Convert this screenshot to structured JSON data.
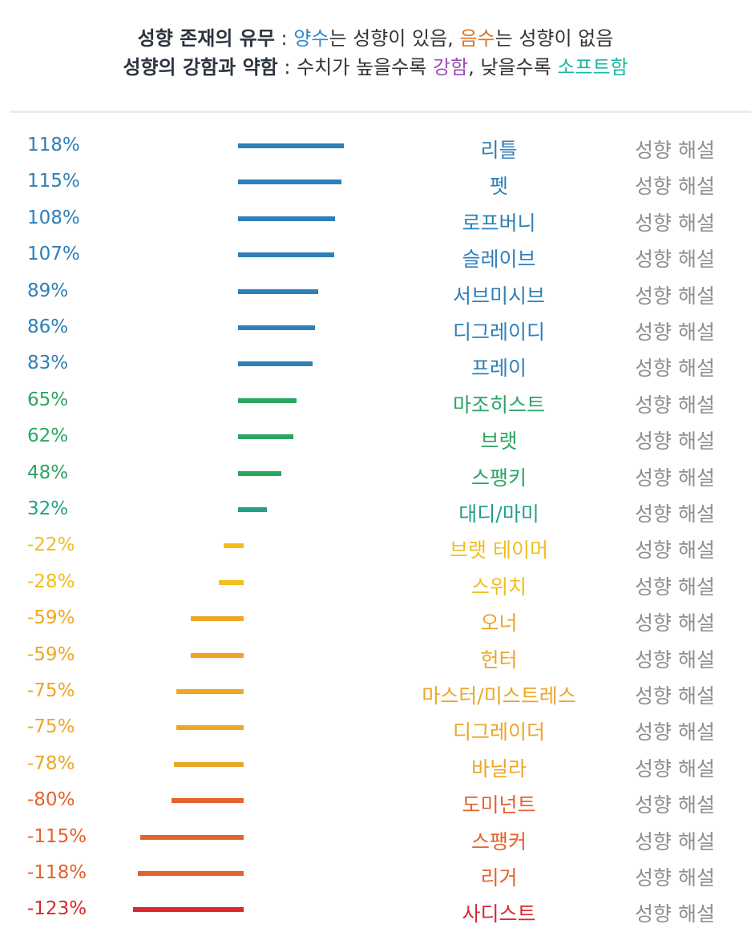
{
  "header": {
    "line1": {
      "bold": "성향 존재의 유무",
      "sep": " : ",
      "positive": "양수",
      "mid": "는 성향이 있음, ",
      "negative": "음수",
      "end": "는 성향이 없음",
      "positive_color": "#2a8bd0",
      "negative_color": "#e0721f"
    },
    "line2": {
      "bold": "성향의 강함과 약함",
      "sep": " : ",
      "text": "수치가 높을수록 ",
      "strong": "강함",
      "mid": ", 낮을수록 ",
      "soft": "소프트함",
      "strong_color": "#9b4bb4",
      "soft_color": "#1bb7a1"
    }
  },
  "rows": [
    {
      "pct_label": "118%",
      "value": 118,
      "name": "리틀",
      "desc": "성향 해설",
      "color": "#2f7fb8"
    },
    {
      "pct_label": "115%",
      "value": 115,
      "name": "펫",
      "desc": "성향 해설",
      "color": "#2f7fb8"
    },
    {
      "pct_label": "108%",
      "value": 108,
      "name": "로프버니",
      "desc": "성향 해설",
      "color": "#2f7fb8"
    },
    {
      "pct_label": "107%",
      "value": 107,
      "name": "슬레이브",
      "desc": "성향 해설",
      "color": "#2f7fb8"
    },
    {
      "pct_label": "89%",
      "value": 89,
      "name": "서브미시브",
      "desc": "성향 해설",
      "color": "#2f7fb8"
    },
    {
      "pct_label": "86%",
      "value": 86,
      "name": "디그레이디",
      "desc": "성향 해설",
      "color": "#2f7fb8"
    },
    {
      "pct_label": "83%",
      "value": 83,
      "name": "프레이",
      "desc": "성향 해설",
      "color": "#2f7fb8"
    },
    {
      "pct_label": "65%",
      "value": 65,
      "name": "마조히스트",
      "desc": "성향 해설",
      "color": "#2ba562"
    },
    {
      "pct_label": "62%",
      "value": 62,
      "name": "브랫",
      "desc": "성향 해설",
      "color": "#2ba562"
    },
    {
      "pct_label": "48%",
      "value": 48,
      "name": "스팽키",
      "desc": "성향 해설",
      "color": "#2ba562"
    },
    {
      "pct_label": "32%",
      "value": 32,
      "name": "대디/마미",
      "desc": "성향 해설",
      "color": "#24a08a"
    },
    {
      "pct_label": "-22%",
      "value": -22,
      "name": "브랫 테이머",
      "desc": "성향 해설",
      "color": "#f2bd1d"
    },
    {
      "pct_label": "-28%",
      "value": -28,
      "name": "스위치",
      "desc": "성향 해설",
      "color": "#f2bd1d"
    },
    {
      "pct_label": "-59%",
      "value": -59,
      "name": "오너",
      "desc": "성향 해설",
      "color": "#eda628"
    },
    {
      "pct_label": "-59%",
      "value": -59,
      "name": "헌터",
      "desc": "성향 해설",
      "color": "#eda628"
    },
    {
      "pct_label": "-75%",
      "value": -75,
      "name": "마스터/미스트레스",
      "desc": "성향 해설",
      "color": "#eda628"
    },
    {
      "pct_label": "-75%",
      "value": -75,
      "name": "디그레이더",
      "desc": "성향 해설",
      "color": "#eda628"
    },
    {
      "pct_label": "-78%",
      "value": -78,
      "name": "바닐라",
      "desc": "성향 해설",
      "color": "#eda628"
    },
    {
      "pct_label": "-80%",
      "value": -80,
      "name": "도미넌트",
      "desc": "성향 해설",
      "color": "#e5612d"
    },
    {
      "pct_label": "-115%",
      "value": -115,
      "name": "스팽커",
      "desc": "성향 해설",
      "color": "#e5612d"
    },
    {
      "pct_label": "-118%",
      "value": -118,
      "name": "리거",
      "desc": "성향 해설",
      "color": "#e5612d"
    },
    {
      "pct_label": "-123%",
      "value": -123,
      "name": "사디스트",
      "desc": "성향 해설",
      "color": "#d9282e"
    }
  ]
}
